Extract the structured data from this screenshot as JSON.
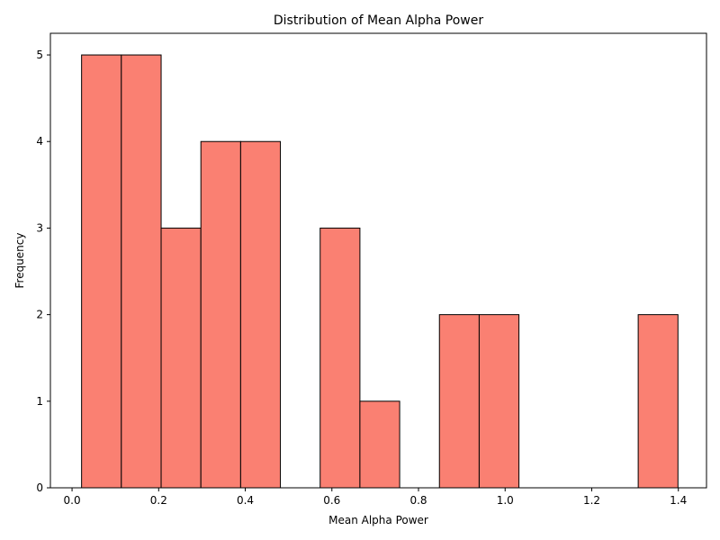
{
  "chart_data": {
    "type": "bar",
    "title": "Distribution of Mean Alpha Power",
    "xlabel": "Mean Alpha Power",
    "ylabel": "Frequency",
    "xlim": [
      -0.05,
      1.465
    ],
    "ylim": [
      0,
      5.25
    ],
    "xticks": [
      0.0,
      0.2,
      0.4,
      0.6,
      0.8,
      1.0,
      1.2,
      1.4
    ],
    "xtick_labels": [
      "0.0",
      "0.2",
      "0.4",
      "0.6",
      "0.8",
      "1.0",
      "1.2",
      "1.4"
    ],
    "yticks": [
      0,
      1,
      2,
      3,
      4,
      5
    ],
    "ytick_labels": [
      "0",
      "1",
      "2",
      "3",
      "4",
      "5"
    ],
    "bin_edges": [
      0.022,
      0.1138,
      0.2057,
      0.2975,
      0.3893,
      0.4811,
      0.5729,
      0.6647,
      0.7565,
      0.8483,
      0.9401,
      1.0319,
      1.1237,
      1.2155,
      1.3073,
      1.3991
    ],
    "counts": [
      5,
      5,
      3,
      4,
      4,
      0,
      3,
      1,
      0,
      2,
      2,
      0,
      0,
      0,
      2
    ],
    "bar_color": "#fa8072",
    "edge_color": "#000000"
  }
}
